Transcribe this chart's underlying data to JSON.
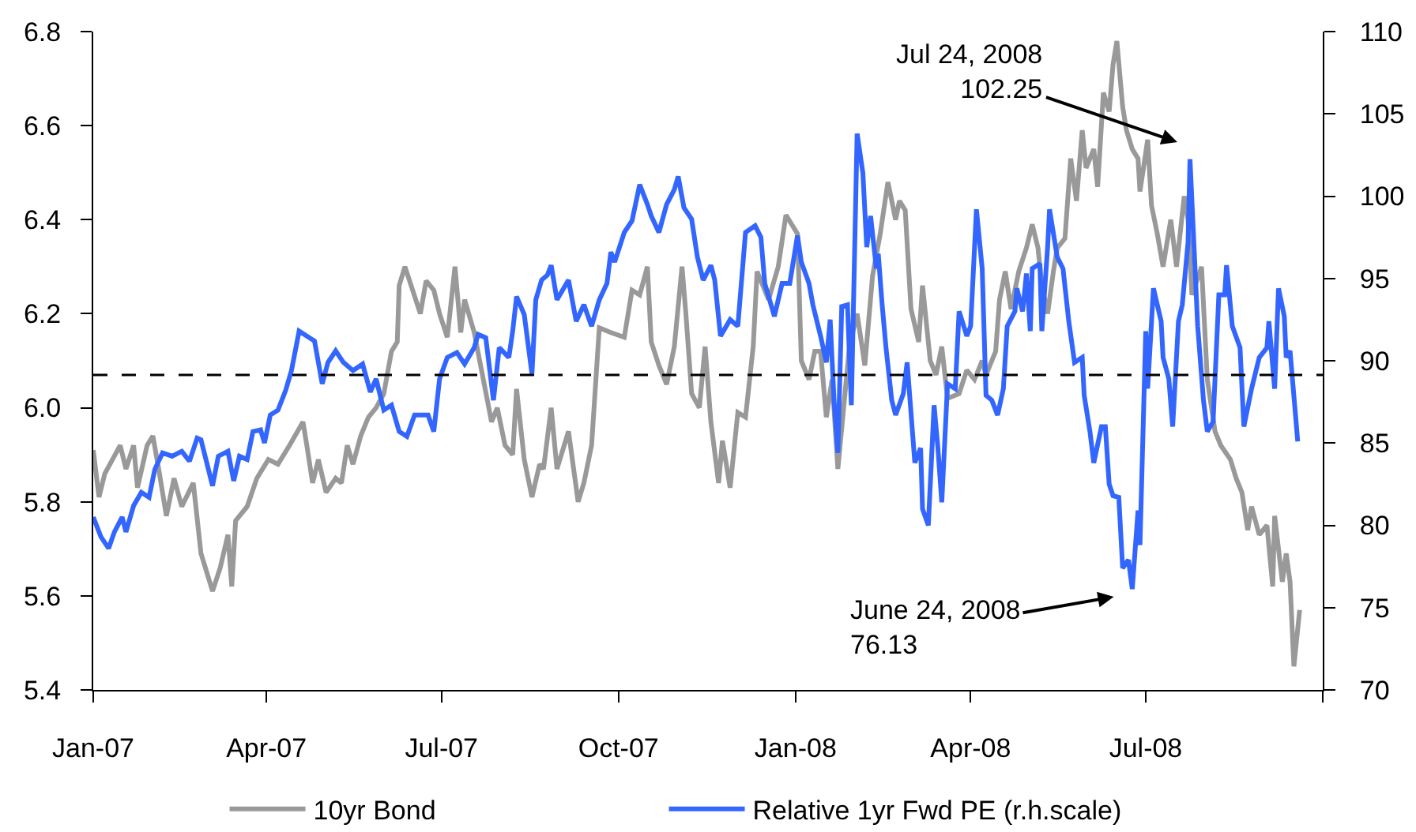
{
  "chart_data": {
    "type": "line",
    "xlim": [
      "2007-01-01",
      "2008-10-01"
    ],
    "xticks": [
      {
        "value": "2007-01-01",
        "label": "Jan-07"
      },
      {
        "value": "2007-04-01",
        "label": "Apr-07"
      },
      {
        "value": "2007-07-01",
        "label": "Jul-07"
      },
      {
        "value": "2007-10-01",
        "label": "Oct-07"
      },
      {
        "value": "2008-01-01",
        "label": "Jan-08"
      },
      {
        "value": "2008-04-01",
        "label": "Apr-08"
      },
      {
        "value": "2008-07-01",
        "label": "Jul-08"
      },
      {
        "value": "2008-10-01",
        "label": null
      }
    ],
    "ylim": [
      5.4,
      6.8
    ],
    "yticks": [
      5.4,
      5.6,
      5.8,
      {
        "value": 6,
        "label": "6.0"
      },
      6.2,
      6.4,
      6.6,
      6.8
    ],
    "y2lim": [
      70,
      110
    ],
    "y2ticks": [
      70,
      75,
      80,
      85,
      90,
      95,
      100,
      105,
      110
    ],
    "legend": "bottom",
    "ref_lines": [
      {
        "axis": "y",
        "value": 6.07,
        "color": "#000000",
        "line_style": "dashed"
      }
    ],
    "annotations": [
      "Jul 24, 2008\n102.25",
      "June 24, 2008\n76.13"
    ],
    "series": [
      {
        "name": "10yr Bond",
        "color": "#999999",
        "x": [
          "2007-01-01",
          "2007-01-04",
          "2007-01-07",
          "2007-01-11",
          "2007-01-15",
          "2007-01-18",
          "2007-01-22",
          "2007-01-24",
          "2007-01-29",
          "2007-02-01",
          "2007-02-04",
          "2007-02-08",
          "2007-02-12",
          "2007-02-16",
          "2007-02-22",
          "2007-02-26",
          "2007-03-04",
          "2007-03-08",
          "2007-03-12",
          "2007-03-14",
          "2007-03-16",
          "2007-03-22",
          "2007-03-27",
          "2007-04-02",
          "2007-04-07",
          "2007-04-13",
          "2007-04-20",
          "2007-04-22",
          "2007-04-25",
          "2007-04-28",
          "2007-05-02",
          "2007-05-07",
          "2007-05-10",
          "2007-05-13",
          "2007-05-16",
          "2007-05-20",
          "2007-05-24",
          "2007-05-28",
          "2007-06-01",
          "2007-06-05",
          "2007-06-08",
          "2007-06-09",
          "2007-06-12",
          "2007-06-16",
          "2007-06-20",
          "2007-06-23",
          "2007-06-27",
          "2007-06-30",
          "2007-07-04",
          "2007-07-08",
          "2007-07-11",
          "2007-07-13",
          "2007-07-18",
          "2007-07-27",
          "2007-07-30",
          "2007-08-03",
          "2007-08-07",
          "2007-08-09",
          "2007-08-13",
          "2007-08-17",
          "2007-08-21",
          "2007-08-23",
          "2007-08-27",
          "2007-08-30",
          "2007-09-05",
          "2007-09-10",
          "2007-09-13",
          "2007-09-17",
          "2007-09-21",
          "2007-09-27",
          "2007-10-04",
          "2007-10-08",
          "2007-10-12",
          "2007-10-16",
          "2007-10-18",
          "2007-10-22",
          "2007-10-26",
          "2007-10-30",
          "2007-11-03",
          "2007-11-05",
          "2007-11-08",
          "2007-11-12",
          "2007-11-15",
          "2007-11-18",
          "2007-11-22",
          "2007-11-24",
          "2007-11-28",
          "2007-12-02",
          "2007-12-06",
          "2007-12-10",
          "2007-12-12",
          "2007-12-18",
          "2007-12-23",
          "2007-12-27",
          "2007-12-30",
          "2008-01-02",
          "2008-01-04",
          "2008-01-08",
          "2008-01-11",
          "2008-01-14",
          "2008-01-17",
          "2008-01-20",
          "2008-01-23",
          "2008-01-29",
          "2008-02-02",
          "2008-02-06",
          "2008-02-10",
          "2008-02-14",
          "2008-02-18",
          "2008-02-22",
          "2008-02-24",
          "2008-02-27",
          "2008-03-01",
          "2008-03-05",
          "2008-03-07",
          "2008-03-11",
          "2008-03-14",
          "2008-03-17",
          "2008-03-20",
          "2008-03-26",
          "2008-03-30",
          "2008-04-03",
          "2008-04-07",
          "2008-04-09",
          "2008-04-14",
          "2008-04-16",
          "2008-04-19",
          "2008-04-22",
          "2008-04-26",
          "2008-04-30",
          "2008-05-03",
          "2008-05-06",
          "2008-05-08",
          "2008-05-11",
          "2008-05-14",
          "2008-05-16",
          "2008-05-20",
          "2008-05-23",
          "2008-05-26",
          "2008-05-29",
          "2008-05-31",
          "2008-06-04",
          "2008-06-06",
          "2008-06-09",
          "2008-06-12",
          "2008-06-14",
          "2008-06-16",
          "2008-06-19",
          "2008-06-21",
          "2008-06-24",
          "2008-06-27",
          "2008-06-28",
          "2008-07-02",
          "2008-07-04",
          "2008-07-07",
          "2008-07-10",
          "2008-07-14",
          "2008-07-17",
          "2008-07-21",
          "2008-07-23",
          "2008-07-25",
          "2008-07-30",
          "2008-08-02",
          "2008-08-06",
          "2008-08-09",
          "2008-08-14",
          "2008-08-17",
          "2008-08-20",
          "2008-08-23",
          "2008-08-25",
          "2008-08-29",
          "2008-09-02",
          "2008-09-05",
          "2008-09-06",
          "2008-09-10",
          "2008-09-12",
          "2008-09-14",
          "2008-09-16",
          "2008-09-19"
        ],
        "values": [
          5.91,
          5.81,
          5.86,
          5.89,
          5.92,
          5.87,
          5.92,
          5.83,
          5.92,
          5.94,
          5.87,
          5.77,
          5.85,
          5.79,
          5.84,
          5.69,
          5.61,
          5.66,
          5.73,
          5.62,
          5.76,
          5.79,
          5.85,
          5.89,
          5.88,
          5.92,
          5.97,
          5.92,
          5.84,
          5.89,
          5.82,
          5.85,
          5.84,
          5.92,
          5.88,
          5.94,
          5.98,
          6.0,
          6.03,
          6.12,
          6.14,
          6.26,
          6.3,
          6.25,
          6.2,
          6.27,
          6.25,
          6.2,
          6.15,
          6.3,
          6.16,
          6.23,
          6.16,
          5.97,
          6.0,
          5.92,
          5.9,
          6.04,
          5.89,
          5.81,
          5.88,
          5.87,
          6.0,
          5.87,
          5.95,
          5.8,
          5.84,
          5.92,
          6.17,
          6.16,
          6.15,
          6.25,
          6.24,
          6.3,
          6.14,
          6.09,
          6.05,
          6.13,
          6.3,
          6.2,
          6.03,
          6.0,
          6.13,
          5.97,
          5.84,
          5.93,
          5.83,
          5.99,
          5.98,
          6.13,
          6.29,
          6.23,
          6.3,
          6.41,
          6.39,
          6.37,
          6.1,
          6.06,
          6.12,
          6.12,
          5.98,
          6.06,
          5.87,
          6.13,
          6.2,
          6.09,
          6.28,
          6.37,
          6.48,
          6.4,
          6.44,
          6.42,
          6.21,
          6.14,
          6.26,
          6.1,
          6.07,
          6.13,
          6.02,
          6.03,
          6.08,
          6.06,
          6.1,
          6.07,
          6.12,
          6.23,
          6.29,
          6.21,
          6.29,
          6.34,
          6.39,
          6.34,
          6.26,
          6.2,
          6.29,
          6.34,
          6.36,
          6.53,
          6.44,
          6.59,
          6.51,
          6.55,
          6.47,
          6.67,
          6.63,
          6.73,
          6.78,
          6.64,
          6.59,
          6.55,
          6.53,
          6.46,
          6.57,
          6.43,
          6.37,
          6.3,
          6.4,
          6.3,
          6.45,
          6.4,
          6.24,
          6.3,
          6.06,
          5.95,
          5.92,
          5.89,
          5.85,
          5.82,
          5.74,
          5.79,
          5.73,
          5.75,
          5.62,
          5.77,
          5.63,
          5.69,
          5.63,
          5.45,
          5.57
        ]
      },
      {
        "name": "Relative 1yr Fwd PE (r.h.scale)",
        "color": "#3366ff",
        "axis": "y2",
        "x": [
          "2007-01-01",
          "2007-01-05",
          "2007-01-09",
          "2007-01-12",
          "2007-01-16",
          "2007-01-18",
          "2007-01-22",
          "2007-01-26",
          "2007-01-30",
          "2007-02-02",
          "2007-02-06",
          "2007-02-11",
          "2007-02-16",
          "2007-02-20",
          "2007-02-24",
          "2007-02-26",
          "2007-03-01",
          "2007-03-04",
          "2007-03-07",
          "2007-03-12",
          "2007-03-15",
          "2007-03-18",
          "2007-03-22",
          "2007-03-25",
          "2007-03-29",
          "2007-03-31",
          "2007-04-03",
          "2007-04-07",
          "2007-04-11",
          "2007-04-14",
          "2007-04-18",
          "2007-04-22",
          "2007-04-26",
          "2007-04-30",
          "2007-05-03",
          "2007-05-07",
          "2007-05-11",
          "2007-05-16",
          "2007-05-21",
          "2007-05-25",
          "2007-05-28",
          "2007-06-01",
          "2007-06-05",
          "2007-06-09",
          "2007-06-13",
          "2007-06-17",
          "2007-06-24",
          "2007-06-27",
          "2007-06-30",
          "2007-07-04",
          "2007-07-09",
          "2007-07-13",
          "2007-07-18",
          "2007-07-20",
          "2007-07-24",
          "2007-07-28",
          "2007-07-31",
          "2007-08-05",
          "2007-08-07",
          "2007-08-09",
          "2007-08-13",
          "2007-08-17",
          "2007-08-19",
          "2007-08-22",
          "2007-08-25",
          "2007-08-27",
          "2007-08-30",
          "2007-09-05",
          "2007-09-09",
          "2007-09-13",
          "2007-09-17",
          "2007-09-21",
          "2007-09-25",
          "2007-09-27",
          "2007-09-29",
          "2007-10-04",
          "2007-10-08",
          "2007-10-12",
          "2007-10-16",
          "2007-10-18",
          "2007-10-22",
          "2007-10-26",
          "2007-10-30",
          "2007-11-01",
          "2007-11-04",
          "2007-11-08",
          "2007-11-11",
          "2007-11-14",
          "2007-11-18",
          "2007-11-20",
          "2007-11-23",
          "2007-11-28",
          "2007-12-02",
          "2007-12-06",
          "2007-12-11",
          "2007-12-14",
          "2007-12-16",
          "2007-12-21",
          "2007-12-25",
          "2007-12-29",
          "2008-01-02",
          "2008-01-04",
          "2008-01-08",
          "2008-01-10",
          "2008-01-14",
          "2008-01-17",
          "2008-01-19",
          "2008-01-21",
          "2008-01-23",
          "2008-01-25",
          "2008-01-28",
          "2008-01-30",
          "2008-02-02",
          "2008-02-05",
          "2008-02-07",
          "2008-02-09",
          "2008-02-12",
          "2008-02-13",
          "2008-02-15",
          "2008-02-17",
          "2008-02-20",
          "2008-02-22",
          "2008-02-26",
          "2008-02-28",
          "2008-03-03",
          "2008-03-06",
          "2008-03-07",
          "2008-03-10",
          "2008-03-13",
          "2008-03-15",
          "2008-03-17",
          "2008-03-20",
          "2008-03-24",
          "2008-03-26",
          "2008-03-30",
          "2008-04-01",
          "2008-04-04",
          "2008-04-07",
          "2008-04-09",
          "2008-04-12",
          "2008-04-15",
          "2008-04-18",
          "2008-04-20",
          "2008-04-24",
          "2008-04-25",
          "2008-04-28",
          "2008-04-30",
          "2008-05-02",
          "2008-05-03",
          "2008-05-07",
          "2008-05-08",
          "2008-05-11",
          "2008-05-12",
          "2008-05-16",
          "2008-05-19",
          "2008-05-22",
          "2008-05-25",
          "2008-05-29",
          "2008-05-30",
          "2008-06-02",
          "2008-06-04",
          "2008-06-08",
          "2008-06-10",
          "2008-06-12",
          "2008-06-14",
          "2008-06-17",
          "2008-06-19",
          "2008-06-22",
          "2008-06-24",
          "2008-06-27",
          "2008-06-28",
          "2008-07-01",
          "2008-07-02",
          "2008-07-05",
          "2008-07-09",
          "2008-07-10",
          "2008-07-13",
          "2008-07-15",
          "2008-07-18",
          "2008-07-20",
          "2008-07-23",
          "2008-07-24",
          "2008-07-28",
          "2008-07-31",
          "2008-08-02",
          "2008-08-05",
          "2008-08-08",
          "2008-08-11",
          "2008-08-12",
          "2008-08-15",
          "2008-08-19",
          "2008-08-21",
          "2008-08-25",
          "2008-08-29",
          "2008-09-02",
          "2008-09-03",
          "2008-09-06",
          "2008-09-08",
          "2008-09-11",
          "2008-09-12",
          "2008-09-14",
          "2008-09-18"
        ],
        "values": [
          80.5,
          79.3,
          78.6,
          79.6,
          80.5,
          79.6,
          81.2,
          82.0,
          81.7,
          83.4,
          84.4,
          84.2,
          84.5,
          83.9,
          85.3,
          85.2,
          83.8,
          82.4,
          84.2,
          84.5,
          82.7,
          84.2,
          84.0,
          85.7,
          85.8,
          85.0,
          86.7,
          87.0,
          88.2,
          89.4,
          91.8,
          91.5,
          91.2,
          88.6,
          89.9,
          90.6,
          89.9,
          89.4,
          89.8,
          88.1,
          88.9,
          87.0,
          87.3,
          85.7,
          85.4,
          86.7,
          86.7,
          85.7,
          88.9,
          90.2,
          90.5,
          89.8,
          90.8,
          91.6,
          91.4,
          87.6,
          90.8,
          90.2,
          91.8,
          93.9,
          92.8,
          89.2,
          93.7,
          94.9,
          95.2,
          95.8,
          93.7,
          94.9,
          92.4,
          93.4,
          92.1,
          93.7,
          94.7,
          96.6,
          96.0,
          97.8,
          98.5,
          100.7,
          99.5,
          98.8,
          97.8,
          99.5,
          100.4,
          101.2,
          99.3,
          98.6,
          96.3,
          94.9,
          95.8,
          94.9,
          91.5,
          92.5,
          92.1,
          97.8,
          98.2,
          97.5,
          94.7,
          92.7,
          94.7,
          94.7,
          97.6,
          96.0,
          94.7,
          93.4,
          91.5,
          89.9,
          92.5,
          87.6,
          84.4,
          93.3,
          93.4,
          87.3,
          103.8,
          101.4,
          96.9,
          98.8,
          95.6,
          96.5,
          93.4,
          90.8,
          87.6,
          86.7,
          88.0,
          89.9,
          83.8,
          84.7,
          81.0,
          80.0,
          87.3,
          84.7,
          81.4,
          88.6,
          88.3,
          93.0,
          91.5,
          92.1,
          99.2,
          95.6,
          87.9,
          87.6,
          86.7,
          88.3,
          92.1,
          93.0,
          94.4,
          93.0,
          95.3,
          91.8,
          95.6,
          95.9,
          91.8,
          96.9,
          99.2,
          96.3,
          95.6,
          92.4,
          89.9,
          90.2,
          87.9,
          85.7,
          83.8,
          86.0,
          86.0,
          82.5,
          81.8,
          81.7,
          77.4,
          77.9,
          76.13,
          80.9,
          78.8,
          91.8,
          88.3,
          94.4,
          92.4,
          90.2,
          88.9,
          86.0,
          92.4,
          93.4,
          97.2,
          102.25,
          92.1,
          87.6,
          85.7,
          86.3,
          94.0,
          94.0,
          95.8,
          92.1,
          90.8,
          86.0,
          88.3,
          90.2,
          90.8,
          92.4,
          88.3,
          94.4,
          92.7,
          90.2,
          90.6,
          85.1
        ]
      }
    ]
  }
}
